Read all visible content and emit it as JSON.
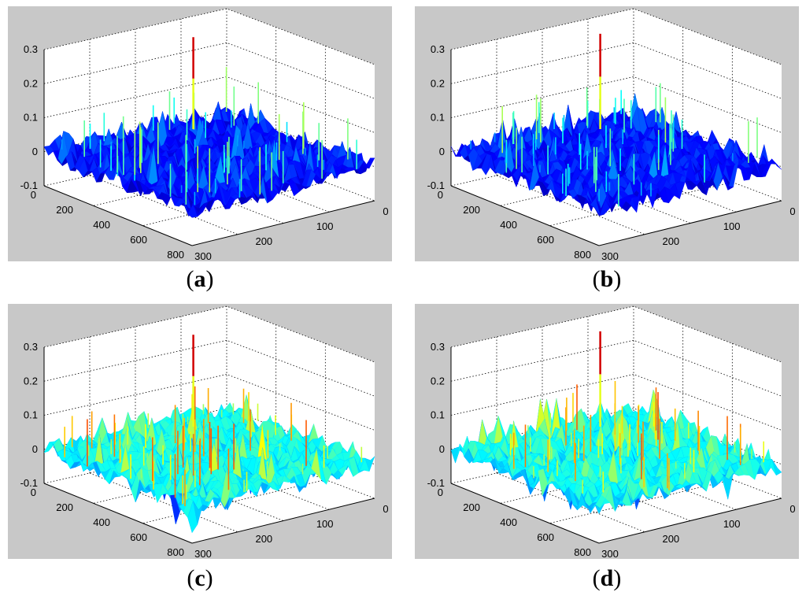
{
  "figure": {
    "panels": [
      {
        "paren_open": "(",
        "letter": "a",
        "paren_close": ")"
      },
      {
        "paren_open": "(",
        "letter": "b",
        "paren_close": ")"
      },
      {
        "paren_open": "(",
        "letter": "c",
        "paren_close": ")"
      },
      {
        "paren_open": "(",
        "letter": "d",
        "paren_close": ")"
      }
    ]
  },
  "colors": {
    "figure_bg": "#c8c8c8",
    "axes_bg": "#ffffff",
    "low": "#0a10c8",
    "mid": "#19d8e0",
    "high": "#d20000"
  },
  "chart_data": [
    {
      "type": "surface",
      "panel": "a",
      "zticks": [
        "-0.1",
        "0",
        "0.1",
        "0.2",
        "0.3"
      ],
      "xticks": [
        "0",
        "100",
        "200",
        "300"
      ],
      "yticks": [
        "0",
        "200",
        "400",
        "600",
        "800"
      ],
      "zlim": [
        -0.1,
        0.3
      ],
      "xlim": [
        0,
        300
      ],
      "ylim": [
        0,
        800
      ],
      "grid": true,
      "baseline": 0.0,
      "peak": 0.27,
      "colormap": "jet",
      "dominant_color": "blue"
    },
    {
      "type": "surface",
      "panel": "b",
      "zticks": [
        "-0.1",
        "0",
        "0.1",
        "0.2",
        "0.3"
      ],
      "xticks": [
        "0",
        "100",
        "200",
        "300"
      ],
      "yticks": [
        "0",
        "200",
        "400",
        "600",
        "800"
      ],
      "zlim": [
        -0.1,
        0.3
      ],
      "xlim": [
        0,
        300
      ],
      "ylim": [
        0,
        800
      ],
      "grid": true,
      "baseline": 0.0,
      "peak": 0.28,
      "colormap": "jet",
      "dominant_color": "blue"
    },
    {
      "type": "surface",
      "panel": "c",
      "zticks": [
        "-0.1",
        "0",
        "0.1",
        "0.2",
        "0.3"
      ],
      "xticks": [
        "0",
        "100",
        "200",
        "300"
      ],
      "yticks": [
        "0",
        "200",
        "400",
        "600",
        "800"
      ],
      "zlim": [
        -0.1,
        0.3
      ],
      "xlim": [
        0,
        300
      ],
      "ylim": [
        0,
        800
      ],
      "grid": true,
      "baseline": 0.0,
      "peak": 0.27,
      "colormap": "jet",
      "dominant_color": "cyan"
    },
    {
      "type": "surface",
      "panel": "d",
      "zticks": [
        "-0.1",
        "0",
        "0.1",
        "0.2",
        "0.3"
      ],
      "xticks": [
        "0",
        "100",
        "200",
        "300"
      ],
      "yticks": [
        "0",
        "200",
        "400",
        "600",
        "800"
      ],
      "zlim": [
        -0.1,
        0.3
      ],
      "xlim": [
        0,
        300
      ],
      "ylim": [
        0,
        800
      ],
      "grid": true,
      "baseline": 0.0,
      "peak": 0.28,
      "colormap": "jet",
      "dominant_color": "cyan"
    }
  ]
}
